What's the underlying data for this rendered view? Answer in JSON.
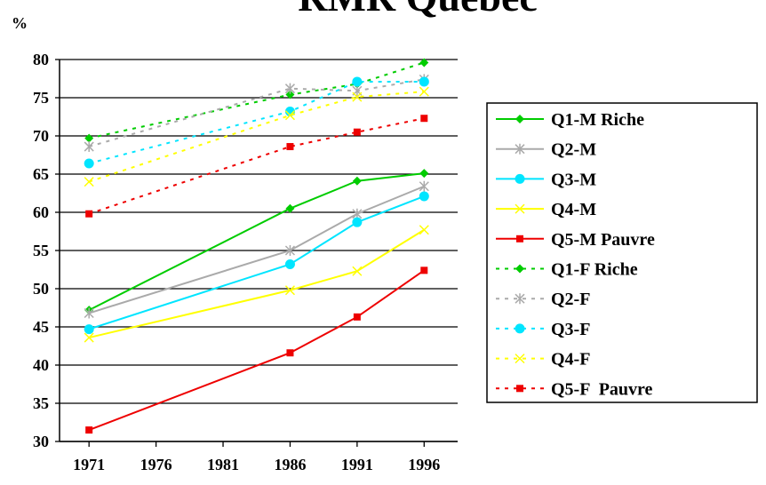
{
  "chart_data": {
    "type": "line",
    "title": "RMR Québec",
    "y_label": "%",
    "x": [
      1971,
      1986,
      1991,
      1996
    ],
    "xlim": [
      1968.8,
      1998.5
    ],
    "xticks": [
      1971,
      1976,
      1981,
      1986,
      1991,
      1996
    ],
    "ylim": [
      30,
      80
    ],
    "yticks": [
      30,
      35,
      40,
      45,
      50,
      55,
      60,
      65,
      70,
      75,
      80
    ],
    "grid": true,
    "legend": "right",
    "series": [
      {
        "name": "Q1-M Riche",
        "color": "#00cc00",
        "marker": "diamond",
        "dashed": false,
        "values": [
          47.2,
          60.5,
          64.1,
          65.1
        ]
      },
      {
        "name": "Q2-M",
        "color": "#aaaaaa",
        "marker": "star",
        "dashed": false,
        "values": [
          46.8,
          55.0,
          59.8,
          63.4
        ]
      },
      {
        "name": "Q3-M",
        "color": "#00e5ff",
        "marker": "circle",
        "dashed": false,
        "values": [
          44.7,
          53.2,
          58.7,
          62.1
        ]
      },
      {
        "name": "Q4-M",
        "color": "#ffff00",
        "marker": "x",
        "dashed": false,
        "values": [
          43.6,
          49.8,
          52.3,
          57.7
        ]
      },
      {
        "name": "Q5-M Pauvre",
        "color": "#ee0000",
        "marker": "square",
        "dashed": false,
        "values": [
          31.5,
          41.6,
          46.3,
          52.4
        ]
      },
      {
        "name": "Q1-F Riche",
        "color": "#00cc00",
        "marker": "diamond",
        "dashed": true,
        "values": [
          69.7,
          75.4,
          76.8,
          79.6
        ]
      },
      {
        "name": "Q2-F",
        "color": "#aaaaaa",
        "marker": "star",
        "dashed": true,
        "values": [
          68.6,
          76.2,
          75.9,
          77.4
        ]
      },
      {
        "name": "Q3-F",
        "color": "#00e5ff",
        "marker": "circle",
        "dashed": true,
        "values": [
          66.4,
          73.2,
          77.1,
          77.1
        ]
      },
      {
        "name": "Q4-F",
        "color": "#ffff00",
        "marker": "x",
        "dashed": true,
        "values": [
          64.0,
          72.7,
          75.1,
          75.8
        ]
      },
      {
        "name": "Q5-F  Pauvre",
        "color": "#ee0000",
        "marker": "square",
        "dashed": true,
        "values": [
          59.8,
          68.6,
          70.5,
          72.3
        ]
      }
    ]
  }
}
